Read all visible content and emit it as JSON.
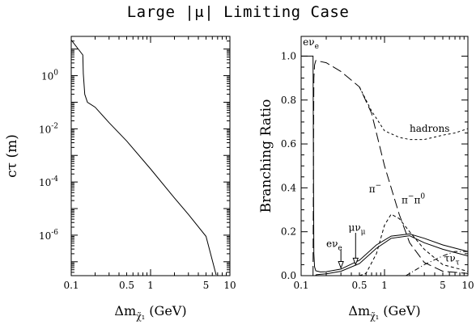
{
  "title": "Large |μ| Limiting Case",
  "chart_data": [
    {
      "type": "line",
      "xlabel": "Δm",
      "xlabel_sub": "χ̃₁",
      "xlabel_unit": "(GeV)",
      "ylabel": "cτ (m)",
      "x_scale": "log",
      "y_scale": "log",
      "xlim": [
        0.1,
        10
      ],
      "ylim": [
        3e-08,
        30
      ],
      "x_ticks": [
        {
          "v": 0.1,
          "label": "0.1"
        },
        {
          "v": 0.5,
          "label": "0.5"
        },
        {
          "v": 1,
          "label": "1"
        },
        {
          "v": 5,
          "label": "5"
        },
        {
          "v": 10,
          "label": "10"
        }
      ],
      "y_ticks": [
        {
          "v": 1,
          "base": "10",
          "exp": "0"
        },
        {
          "v": 0.01,
          "base": "10",
          "exp": "-2"
        },
        {
          "v": 0.0001,
          "base": "10",
          "exp": "-4"
        },
        {
          "v": 1e-06,
          "base": "10",
          "exp": "-6"
        }
      ],
      "grid": false,
      "series": [
        {
          "x": [
            0.1,
            0.14,
            0.142,
            0.148,
            0.16,
            0.2,
            0.3,
            0.5,
            1,
            2,
            3,
            5,
            6.7
          ],
          "y": [
            22,
            6,
            1.2,
            0.2,
            0.1,
            0.065,
            0.017,
            0.0035,
            0.00031,
            2.5e-05,
            6e-06,
            9e-07,
            3.2e-08
          ]
        }
      ]
    },
    {
      "type": "line",
      "xlabel": "Δm",
      "xlabel_sub": "χ̃₁",
      "xlabel_unit": "(GeV)",
      "ylabel": "Branching Ratio",
      "x_scale": "log",
      "xlim": [
        0.1,
        10
      ],
      "ylim": [
        0,
        1.09
      ],
      "x_ticks": [
        {
          "v": 0.1,
          "label": "0.1"
        },
        {
          "v": 0.5,
          "label": "0.5"
        },
        {
          "v": 1,
          "label": "1"
        },
        {
          "v": 5,
          "label": "5"
        },
        {
          "v": 10,
          "label": "10"
        }
      ],
      "y_ticks": [
        {
          "v": 0,
          "label": "0.0"
        },
        {
          "v": 0.2,
          "label": "0.2"
        },
        {
          "v": 0.4,
          "label": "0.4"
        },
        {
          "v": 0.6,
          "label": "0.6"
        },
        {
          "v": 0.8,
          "label": "0.8"
        },
        {
          "v": 1.0,
          "label": "1.0"
        }
      ],
      "grid": false,
      "series": [
        {
          "name": "eν_e",
          "dash": "none",
          "x": [
            0.1,
            0.139,
            0.14,
            0.142,
            0.145,
            0.15,
            0.17,
            0.2,
            0.3,
            0.5,
            0.8,
            1.2,
            2,
            3,
            5,
            10
          ],
          "y": [
            1.0,
            1.0,
            0.6,
            0.1,
            0.04,
            0.022,
            0.017,
            0.018,
            0.03,
            0.07,
            0.14,
            0.18,
            0.19,
            0.17,
            0.14,
            0.11
          ]
        },
        {
          "name": "μν_μ",
          "dash": "none",
          "x": [
            0.148,
            0.152,
            0.17,
            0.2,
            0.3,
            0.5,
            0.8,
            1.2,
            2,
            3,
            5,
            10
          ],
          "y": [
            0,
            0.004,
            0.006,
            0.008,
            0.02,
            0.055,
            0.125,
            0.17,
            0.182,
            0.15,
            0.12,
            0.09
          ]
        },
        {
          "name": "π⁻",
          "dash": "12 5",
          "x": [
            0.139,
            0.14,
            0.142,
            0.145,
            0.15,
            0.2,
            0.3,
            0.5,
            0.7,
            1,
            1.5,
            2,
            3,
            5,
            10
          ],
          "y": [
            0,
            0.4,
            0.9,
            0.96,
            0.98,
            0.97,
            0.93,
            0.86,
            0.74,
            0.5,
            0.28,
            0.15,
            0.06,
            0.02,
            0.01
          ]
        },
        {
          "name": "π⁻π⁰",
          "dash": "4 3",
          "x": [
            0.5,
            0.6,
            0.8,
            1,
            1.2,
            1.5,
            2,
            3,
            5,
            10
          ],
          "y": [
            0.0,
            0.01,
            0.1,
            0.23,
            0.28,
            0.26,
            0.2,
            0.12,
            0.05,
            0.02
          ]
        },
        {
          "name": "hadrons",
          "dash": "3 3",
          "x": [
            0.5,
            0.7,
            1,
            1.5,
            2,
            3,
            5,
            7,
            10
          ],
          "y": [
            0.86,
            0.75,
            0.66,
            0.63,
            0.62,
            0.62,
            0.64,
            0.65,
            0.67
          ]
        },
        {
          "name": "τν_τ",
          "dash": "6 3 1 3",
          "x": [
            1.8,
            2,
            3,
            5,
            7,
            10
          ],
          "y": [
            0,
            0.01,
            0.05,
            0.09,
            0.11,
            0.11
          ]
        }
      ],
      "annotations": [
        {
          "series": "eν_e",
          "base": "eν",
          "sub": "e",
          "at": [
            0.105,
            1.05
          ]
        },
        {
          "series": "hadrons",
          "text": "hadrons",
          "at": [
            2.0,
            0.655
          ]
        },
        {
          "series": "π⁻",
          "base": "π",
          "sup": "−",
          "at": [
            0.65,
            0.38
          ]
        },
        {
          "series": "π⁻π⁰",
          "base": "π",
          "sup": "−",
          "base2": "π",
          "sup2": "0",
          "at": [
            1.6,
            0.33
          ]
        },
        {
          "series": "μν_μ",
          "base": "μν",
          "sub": "μ",
          "at": [
            0.37,
            0.205
          ]
        },
        {
          "series": "eν_e",
          "base": "eν",
          "sub": "e",
          "at": [
            0.2,
            0.13
          ]
        },
        {
          "series": "τν_τ",
          "base": "τν",
          "sub": "τ",
          "at": [
            5.2,
            0.065
          ]
        }
      ]
    }
  ]
}
